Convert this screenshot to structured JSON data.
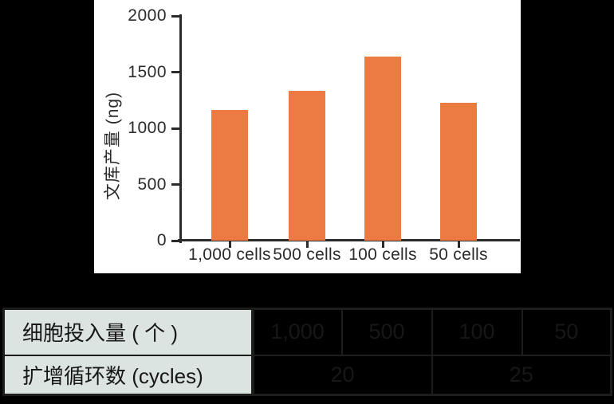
{
  "colors": {
    "background": "#000000",
    "chart_panel": "#ffffff",
    "bar": "#ec7b43",
    "axis": "#2b2b2b",
    "table_header_bg": "#dce4e1",
    "table_border": "#1d1d1b"
  },
  "chart_data": {
    "type": "bar",
    "categories": [
      "1,000 cells",
      "500 cells",
      "100 cells",
      "50 cells"
    ],
    "values": [
      1160,
      1330,
      1640,
      1230
    ],
    "title": "",
    "xlabel": "",
    "ylabel": "文库产量 (ng)",
    "ylim": [
      0,
      2000
    ],
    "yticks": [
      0,
      500,
      1000,
      1500,
      2000
    ],
    "grid": false,
    "legend": false,
    "bar_color": "#ec7b43"
  },
  "table": {
    "rows": [
      {
        "label": "细胞投入量 ( 个 )",
        "cells": [
          "1,000",
          "500",
          "100",
          "50"
        ]
      },
      {
        "label": "扩增循环数 (cycles)",
        "cells": [
          "20",
          "25"
        ]
      }
    ]
  }
}
